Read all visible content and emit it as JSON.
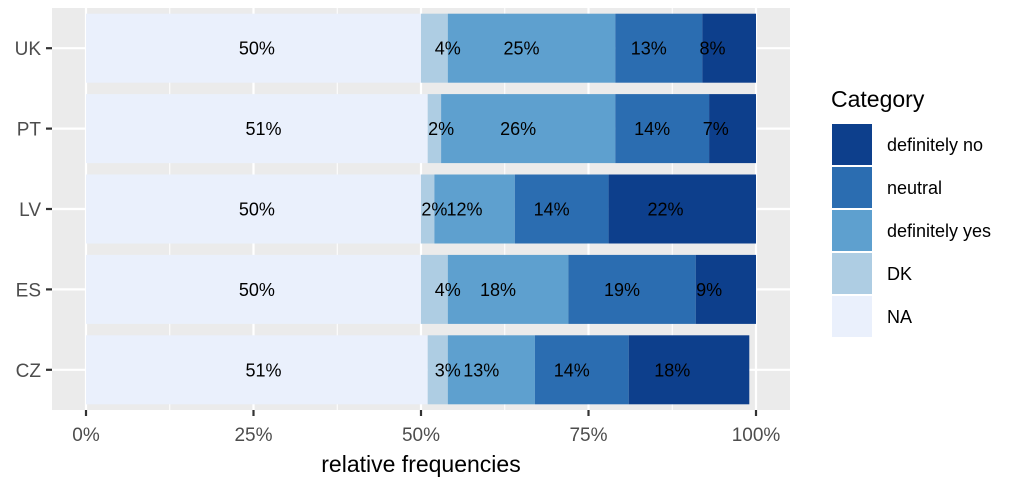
{
  "chart_data": {
    "type": "bar",
    "orientation": "horizontal",
    "stacked": "percent",
    "categories": [
      "UK",
      "PT",
      "LV",
      "ES",
      "CZ"
    ],
    "series": [
      {
        "name": "NA",
        "color": "#eaf0fc",
        "values": [
          50,
          51,
          50,
          50,
          51
        ]
      },
      {
        "name": "DK",
        "color": "#aecde3",
        "values": [
          4,
          2,
          2,
          4,
          3
        ]
      },
      {
        "name": "definitely yes",
        "color": "#5ea0cf",
        "values": [
          25,
          26,
          12,
          18,
          13
        ]
      },
      {
        "name": "neutral",
        "color": "#2b6db1",
        "values": [
          13,
          14,
          14,
          19,
          14
        ]
      },
      {
        "name": "definitely no",
        "color": "#0d3f8c",
        "values": [
          8,
          7,
          22,
          9,
          18
        ]
      }
    ],
    "labels": [
      [
        "50%",
        "4%",
        "25%",
        "13%",
        "8%"
      ],
      [
        "51%",
        "2%",
        "26%",
        "14%",
        "7%"
      ],
      [
        "50%",
        "2%",
        "12%",
        "14%",
        "22%"
      ],
      [
        "50%",
        "4%",
        "18%",
        "19%",
        "9%"
      ],
      [
        "51%",
        "3%",
        "13%",
        "14%",
        "18%"
      ]
    ],
    "x_ticks": [
      "0%",
      "25%",
      "50%",
      "75%",
      "100%"
    ],
    "xlim": [
      0,
      100
    ],
    "xlabel": "relative frequencies",
    "ylabel": "",
    "grid": true,
    "legend": {
      "title": "Category",
      "position": "right",
      "entries": [
        "definitely no",
        "neutral",
        "definitely yes",
        "DK",
        "NA"
      ]
    }
  }
}
